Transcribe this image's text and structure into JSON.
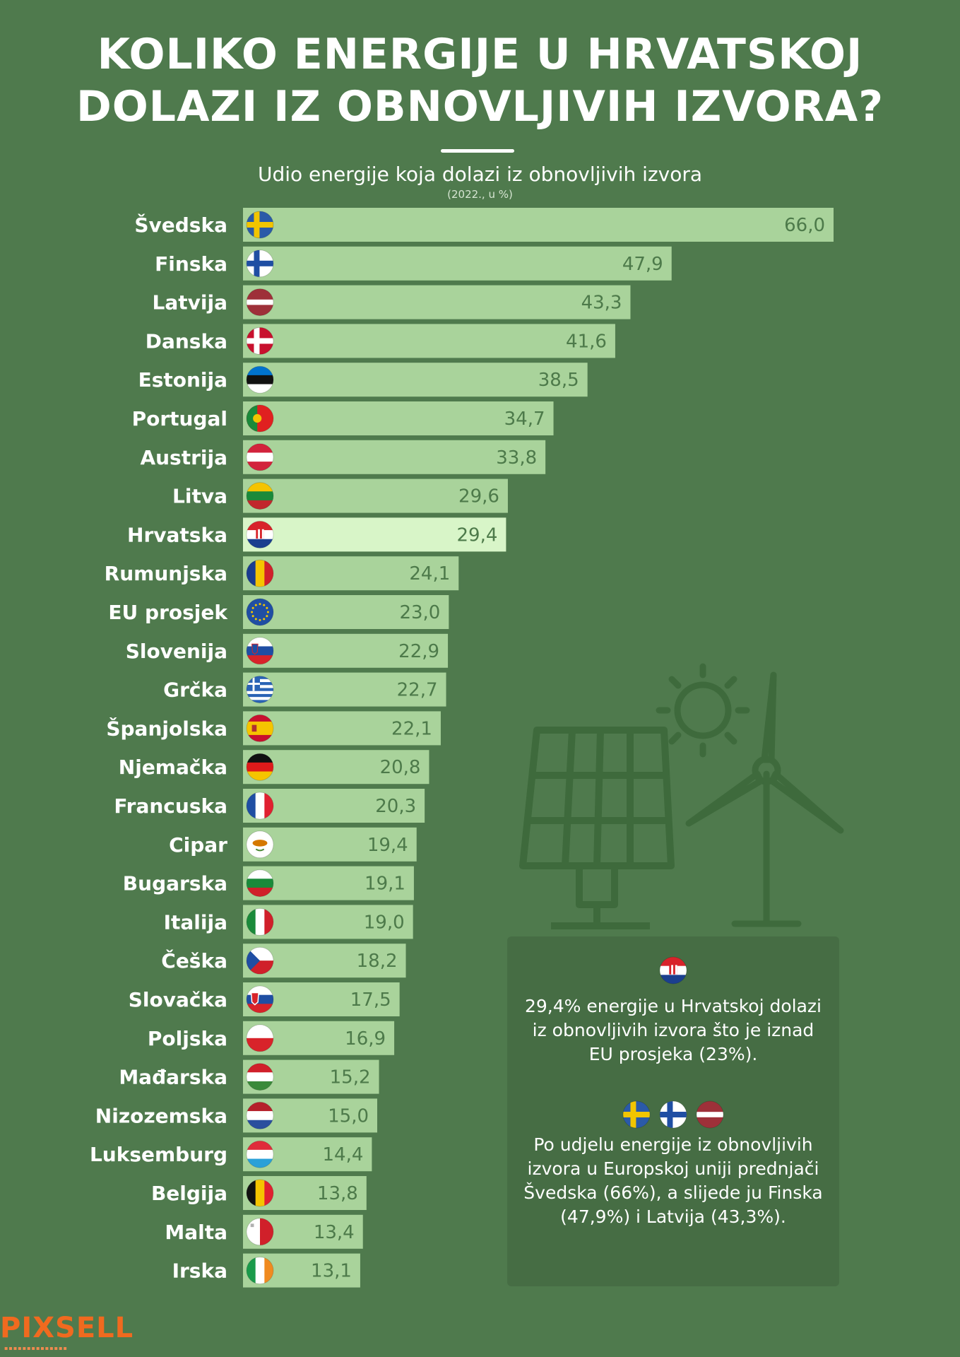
{
  "colors": {
    "background": "#4f7a4d",
    "bar": "#a9d39b",
    "bar_highlight": "#d8f5c8",
    "value_text": "#4d7a4a",
    "label_text": "#ffffff",
    "logo": "#f06a1f"
  },
  "chart_data": {
    "type": "bar",
    "orientation": "horizontal",
    "title": "KOLIKO ENERGIJE U HRVATSKOJ DOLAZI IZ OBNOVLJIVIH IZVORA?",
    "title_lines": [
      "KOLIKO ENERGIJE U HRVATSKOJ",
      "DOLAZI IZ OBNOVLJIVIH IZVORA?"
    ],
    "subtitle": "Udio energije koja dolazi iz obnovljivih izvora",
    "subnote": "(2022., u %)",
    "xlim": [
      0,
      66
    ],
    "grid": false,
    "highlight": "Hrvatska",
    "categories": [
      "Švedska",
      "Finska",
      "Latvija",
      "Danska",
      "Estonija",
      "Portugal",
      "Austrija",
      "Litva",
      "Hrvatska",
      "Rumunjska",
      "EU prosjek",
      "Slovenija",
      "Grčka",
      "Španjolska",
      "Njemačka",
      "Francuska",
      "Cipar",
      "Bugarska",
      "Italija",
      "Češka",
      "Slovačka",
      "Poljska",
      "Mađarska",
      "Nizozemska",
      "Luksemburg",
      "Belgija",
      "Malta",
      "Irska"
    ],
    "values": [
      66.0,
      47.9,
      43.3,
      41.6,
      38.5,
      34.7,
      33.8,
      29.6,
      29.4,
      24.1,
      23.0,
      22.9,
      22.7,
      22.1,
      20.8,
      20.3,
      19.4,
      19.1,
      19.0,
      18.2,
      17.5,
      16.9,
      15.2,
      15.0,
      14.4,
      13.8,
      13.4,
      13.1
    ],
    "value_labels": [
      "66,0",
      "47,9",
      "43,3",
      "41,6",
      "38,5",
      "34,7",
      "33,8",
      "29,6",
      "29,4",
      "24,1",
      "23,0",
      "22,9",
      "22,7",
      "22,1",
      "20,8",
      "20,3",
      "19,4",
      "19,1",
      "19,0",
      "18,2",
      "17,5",
      "16,9",
      "15,2",
      "15,0",
      "14,4",
      "13,8",
      "13,4",
      "13,1"
    ],
    "flag_icons": [
      "flag-se-icon",
      "flag-fi-icon",
      "flag-lv-icon",
      "flag-dk-icon",
      "flag-ee-icon",
      "flag-pt-icon",
      "flag-at-icon",
      "flag-lt-icon",
      "flag-hr-icon",
      "flag-ro-icon",
      "flag-eu-icon",
      "flag-si-icon",
      "flag-gr-icon",
      "flag-es-icon",
      "flag-de-icon",
      "flag-fr-icon",
      "flag-cy-icon",
      "flag-bg-icon",
      "flag-it-icon",
      "flag-cz-icon",
      "flag-sk-icon",
      "flag-pl-icon",
      "flag-hu-icon",
      "flag-nl-icon",
      "flag-lu-icon",
      "flag-be-icon",
      "flag-mt-icon",
      "flag-ie-icon"
    ]
  },
  "infobox": {
    "text_1": "29,4% energije u Hrvatskoj dolazi iz obnovljivih izvora što je iznad EU prosjeka (23%).",
    "text_2": "Po udjelu energije iz obnovljivih izvora u Europskoj uniji prednjači Švedska (66%), a slijede ju Finska (47,9%) i Latvija (43,3%).",
    "flags_1": [
      "flag-hr-icon"
    ],
    "flags_2": [
      "flag-se-icon",
      "flag-fi-icon",
      "flag-lv-icon"
    ]
  },
  "illustration_icons": [
    "sun-icon",
    "solar-panel-icon",
    "wind-turbine-icon"
  ],
  "logo": {
    "text": "PIXSELL"
  }
}
